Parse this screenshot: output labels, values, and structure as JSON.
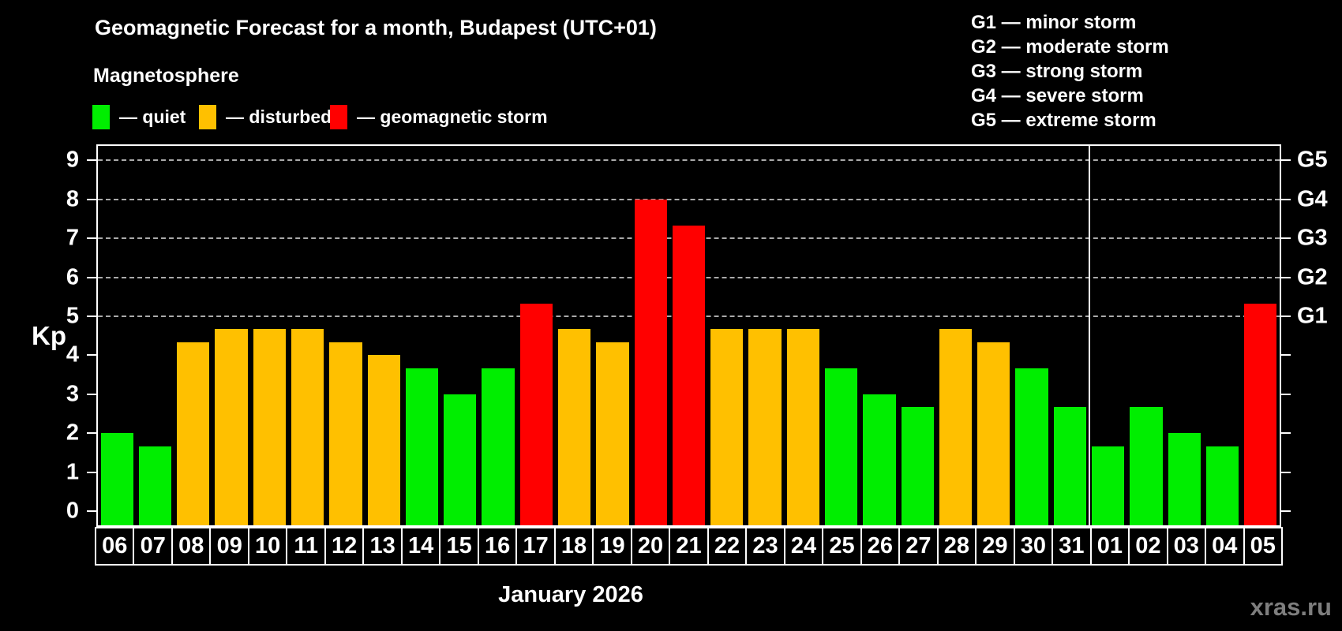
{
  "watermark": "xras.ru",
  "legend": {
    "items": [
      {
        "status": "quiet",
        "label": "— quiet"
      },
      {
        "status": "disturbed",
        "label": "— disturbed"
      },
      {
        "status": "storm",
        "label": "— geomagnetic storm"
      }
    ]
  },
  "g_scale_legend": {
    "items": [
      "G1 — minor storm",
      "G2 — moderate storm",
      "G3 — strong storm",
      "G4 — severe storm",
      "G5 — extreme storm"
    ]
  },
  "chart_data": {
    "type": "bar",
    "title": "Geomagnetic Forecast for a month, Budapest (UTC+01)",
    "subtitle": "Magnetosphere",
    "xlabel": "January 2026",
    "ylabel": "Kp",
    "ylim": [
      -0.4,
      9.4
    ],
    "y_ticks": [
      0,
      1,
      2,
      3,
      4,
      5,
      6,
      7,
      8,
      9
    ],
    "gridlines_at_kp": [
      5,
      6,
      7,
      8,
      9
    ],
    "grid": "dashed horizontal at storm levels only",
    "legend_position": "top-left",
    "categories": [
      "06",
      "07",
      "08",
      "09",
      "10",
      "11",
      "12",
      "13",
      "14",
      "15",
      "16",
      "17",
      "18",
      "19",
      "20",
      "21",
      "22",
      "23",
      "24",
      "25",
      "26",
      "27",
      "28",
      "29",
      "30",
      "31",
      "01",
      "02",
      "03",
      "04",
      "05"
    ],
    "values": [
      2.0,
      1.67,
      4.33,
      4.67,
      4.67,
      4.67,
      4.33,
      4.0,
      3.67,
      3.0,
      3.67,
      5.33,
      4.67,
      4.33,
      8.0,
      7.33,
      4.67,
      4.67,
      4.67,
      3.67,
      3.0,
      2.67,
      4.67,
      4.33,
      3.67,
      2.67,
      1.67,
      2.67,
      2.0,
      1.67,
      5.33
    ],
    "statuses": [
      "quiet",
      "quiet",
      "disturbed",
      "disturbed",
      "disturbed",
      "disturbed",
      "disturbed",
      "disturbed",
      "quiet",
      "quiet",
      "quiet",
      "storm",
      "disturbed",
      "disturbed",
      "storm",
      "storm",
      "disturbed",
      "disturbed",
      "disturbed",
      "quiet",
      "quiet",
      "quiet",
      "disturbed",
      "disturbed",
      "quiet",
      "quiet",
      "quiet",
      "quiet",
      "quiet",
      "quiet",
      "storm"
    ],
    "month_boundary_after_index": 25,
    "colors": {
      "quiet": "#00ee00",
      "disturbed": "#ffc000",
      "storm": "#ff0000",
      "frame": "#ffffff",
      "gridline": "#aaaaaa",
      "background": "#000000"
    },
    "right_axis": {
      "labels": [
        {
          "kp": 5,
          "label": "G1"
        },
        {
          "kp": 6,
          "label": "G2"
        },
        {
          "kp": 7,
          "label": "G3"
        },
        {
          "kp": 8,
          "label": "G4"
        },
        {
          "kp": 9,
          "label": "G5"
        }
      ]
    }
  }
}
